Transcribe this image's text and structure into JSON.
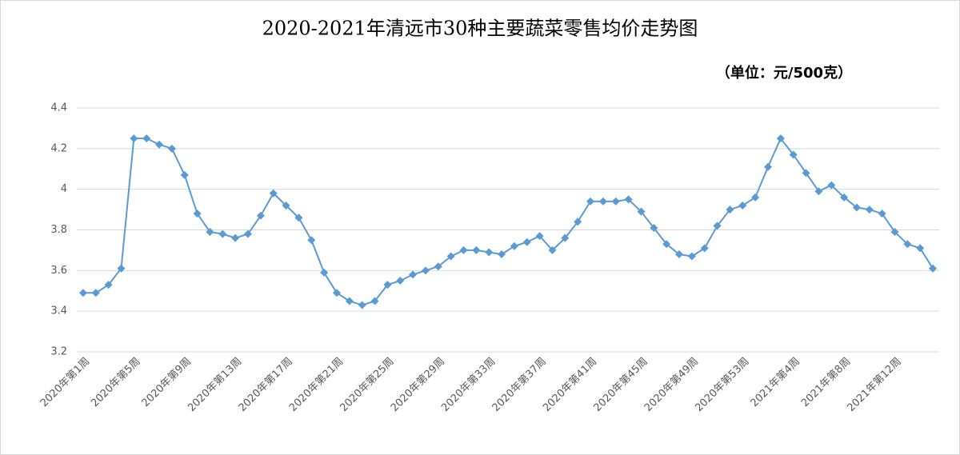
{
  "chart_data": {
    "type": "line",
    "title": "2020-2021年清远市30种主要蔬菜零售均价走势图",
    "subtitle": "（单位：元/500克）",
    "categories": [
      "2020年第1周",
      null,
      null,
      null,
      "2020年第5周",
      null,
      null,
      null,
      "2020年第9周",
      null,
      null,
      null,
      "2020年第13周",
      null,
      null,
      null,
      "2020年第17周",
      null,
      null,
      null,
      "2020年第21周",
      null,
      null,
      null,
      "2020年第25周",
      null,
      null,
      null,
      "2020年第29周",
      null,
      null,
      null,
      "2020年第33周",
      null,
      null,
      null,
      "2020年第37周",
      null,
      null,
      null,
      "2020年第41周",
      null,
      null,
      null,
      "2020年第45周",
      null,
      null,
      null,
      "2020年第49周",
      null,
      null,
      null,
      "2020年第53周",
      null,
      null,
      null,
      "2021年第4周",
      null,
      null,
      null,
      "2021年第8周",
      null,
      null,
      null,
      "2021年第12周",
      null,
      null,
      null
    ],
    "values": [
      3.49,
      3.49,
      3.53,
      3.61,
      4.25,
      4.25,
      4.22,
      4.2,
      4.07,
      3.88,
      3.79,
      3.78,
      3.76,
      3.78,
      3.87,
      3.98,
      3.92,
      3.86,
      3.75,
      3.59,
      3.49,
      3.45,
      3.43,
      3.45,
      3.53,
      3.55,
      3.58,
      3.6,
      3.62,
      3.67,
      3.7,
      3.7,
      3.69,
      3.68,
      3.72,
      3.74,
      3.77,
      3.7,
      3.76,
      3.84,
      3.94,
      3.94,
      3.94,
      3.95,
      3.89,
      3.81,
      3.73,
      3.68,
      3.67,
      3.71,
      3.82,
      3.9,
      3.92,
      3.96,
      4.11,
      4.25,
      4.17,
      4.08,
      3.99,
      4.02,
      3.96,
      3.91,
      3.9,
      3.88,
      3.79,
      3.73,
      3.71,
      3.61
    ],
    "color": "#5b9bd5",
    "ylim": [
      3.2,
      4.4
    ],
    "yticks": [
      3.2,
      3.4,
      3.6,
      3.8,
      4,
      4.2,
      4.4
    ],
    "grid": true
  }
}
